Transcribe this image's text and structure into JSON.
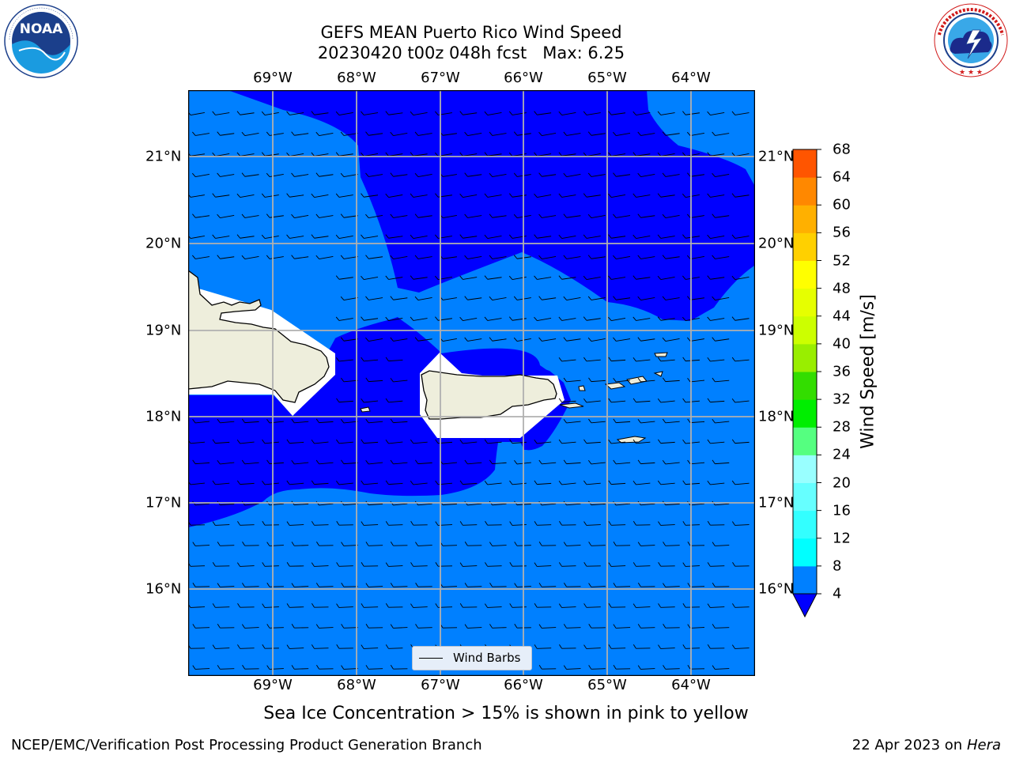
{
  "header": {
    "title_line1": "GEFS MEAN Puerto Rico Wind Speed",
    "title_line2": "20230420 t00z 048h fcst   Max: 6.25"
  },
  "logos": {
    "left": {
      "text": "NOAA",
      "ring_text": "NATIONAL OCEANIC AND ATMOSPHERIC ADMINISTRATION · U.S. DEPARTMENT OF COMMERCE"
    },
    "right": {
      "ring_text": "NATIONAL WEATHER SERVICE"
    }
  },
  "map": {
    "lon_labels": [
      "69°W",
      "68°W",
      "67°W",
      "66°W",
      "65°W",
      "64°W"
    ],
    "lat_labels": [
      "21°N",
      "20°N",
      "19°N",
      "18°N",
      "17°N",
      "16°N"
    ],
    "legend_label": "Wind Barbs",
    "colors": {
      "level_4_8": "#0080ff",
      "below_4": "#0000ff",
      "land": "#eeeedc",
      "grid": "#b0b0b0"
    }
  },
  "colorbar": {
    "title": "Wind Speed [m/s]",
    "ticks": [
      "4",
      "8",
      "12",
      "16",
      "20",
      "24",
      "28",
      "32",
      "36",
      "40",
      "44",
      "48",
      "52",
      "56",
      "60",
      "64",
      "68"
    ],
    "colors": [
      "#0080ff",
      "#00ffff",
      "#33ffff",
      "#66ffff",
      "#99ffff",
      "#55ff80",
      "#00ee00",
      "#33dd00",
      "#99ee00",
      "#ccff00",
      "#e6ff00",
      "#ffff00",
      "#ffd000",
      "#ffb000",
      "#ff8800",
      "#ff5500",
      "#ff2200",
      "#ff0000"
    ],
    "under_color": "#0000ff"
  },
  "note": "Sea Ice Concentration > 15% is shown in pink to yellow",
  "footer": {
    "left": "NCEP/EMC/Verification Post Processing Product Generation Branch",
    "date": "22 Apr 2023 on ",
    "machine": "Hera"
  }
}
